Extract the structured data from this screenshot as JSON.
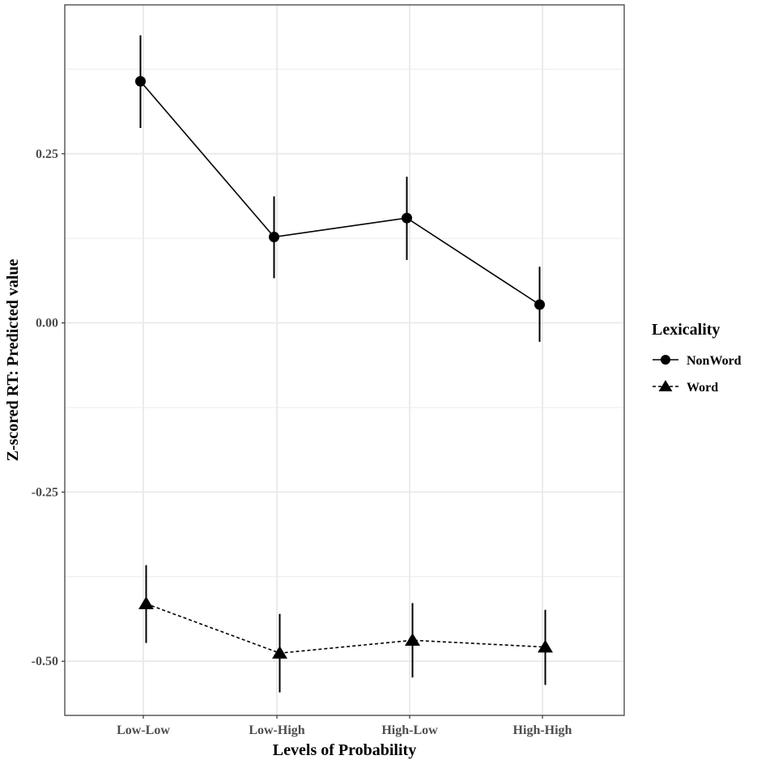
{
  "chart_data": {
    "type": "line",
    "title": "",
    "xlabel": "Levels of Probability",
    "ylabel": "Z-scored RT: Predicted value",
    "categories": [
      "Low-Low",
      "Low-High",
      "High-Low",
      "High-High"
    ],
    "ylim": [
      -0.58,
      0.47
    ],
    "yticks": [
      0.25,
      0.0,
      -0.25,
      -0.5
    ],
    "ytick_labels": [
      "0.25",
      "0.00",
      "-0.25",
      "-0.50"
    ],
    "grid": true,
    "legend": {
      "title": "Lexicality",
      "position": "right"
    },
    "series": [
      {
        "name": "NonWord",
        "marker": "circle",
        "line": "solid",
        "values": [
          0.357,
          0.127,
          0.155,
          0.027
        ],
        "lower": [
          0.288,
          0.066,
          0.093,
          -0.028
        ],
        "upper": [
          0.425,
          0.187,
          0.216,
          0.083
        ]
      },
      {
        "name": "Word",
        "marker": "triangle",
        "line": "dashed",
        "values": [
          -0.415,
          -0.488,
          -0.469,
          -0.479
        ],
        "lower": [
          -0.473,
          -0.546,
          -0.524,
          -0.535
        ],
        "upper": [
          -0.358,
          -0.43,
          -0.414,
          -0.424
        ]
      }
    ]
  },
  "colors": {
    "ink": "#000000",
    "grid": "#ebebeb",
    "tick_text": "#4d4d4d",
    "panel_border": "#333333"
  }
}
